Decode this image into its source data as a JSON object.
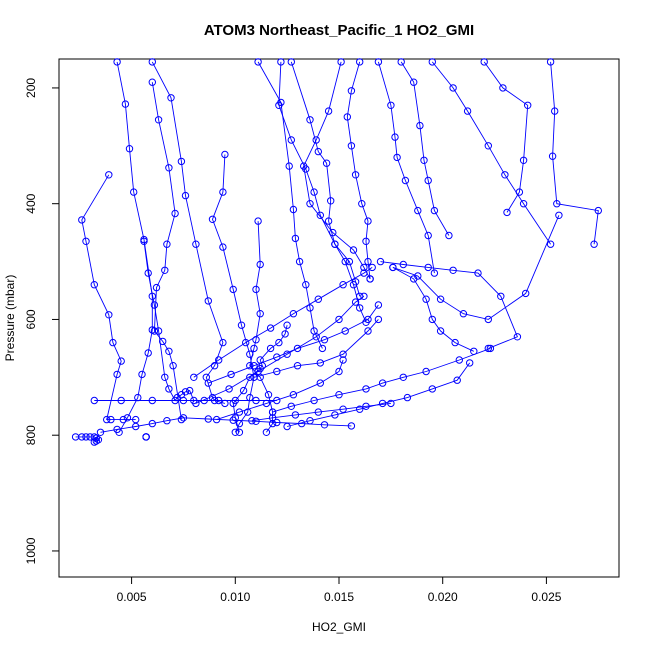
{
  "chart_data": {
    "type": "line",
    "title": "ATOM3 Northeast_Pacific_1 HO2_GMI",
    "xlabel": "HO2_GMI",
    "ylabel": "Pressure (mbar)",
    "xlim": [
      0.0015,
      0.0285
    ],
    "ylim": [
      1045,
      150
    ],
    "y_reversed": true,
    "x_ticks": [
      0.005,
      0.01,
      0.015,
      0.02,
      0.025
    ],
    "x_tick_labels": [
      "0.005",
      "0.010",
      "0.015",
      "0.020",
      "0.025"
    ],
    "y_ticks": [
      200,
      400,
      600,
      800,
      1000
    ],
    "y_tick_labels": [
      "200",
      "400",
      "600",
      "800",
      "1000"
    ],
    "grid": false,
    "legend": "none",
    "marker": "open-circle",
    "color": "#0000ff",
    "series": [
      {
        "x": [
          0.0039,
          0.0026,
          0.0028,
          0.0032,
          0.0039,
          0.0041,
          0.0045,
          0.0043,
          0.0038,
          0.004,
          0.0046,
          0.0052
        ],
        "y": [
          350,
          428,
          465,
          540,
          592,
          640,
          672,
          695,
          773,
          773,
          773,
          773
        ]
      },
      {
        "x": [
          0.0043,
          0.0047,
          0.0049,
          0.0051,
          0.0056,
          0.006,
          0.006,
          0.0058,
          0.0055,
          0.0053,
          0.0048,
          0.0044
        ],
        "y": [
          155,
          228,
          305,
          380,
          462,
          560,
          618,
          658,
          695,
          735,
          770,
          795
        ]
      },
      {
        "x": [
          0.006,
          0.0063,
          0.0068,
          0.0071,
          0.0067,
          0.0066,
          0.0062,
          0.0061,
          0.0065,
          0.0068,
          0.007,
          0.0074
        ],
        "y": [
          190,
          255,
          338,
          417,
          470,
          515,
          545,
          620,
          638,
          655,
          680,
          773
        ]
      },
      {
        "x": [
          0.0056,
          0.0058,
          0.0061,
          0.0063,
          0.0066,
          0.0068,
          0.0071,
          0.0072,
          0.0074,
          0.0076,
          0.0078,
          0.008
        ],
        "y": [
          465,
          520,
          575,
          620,
          700,
          720,
          740,
          735,
          730,
          725,
          723,
          740
        ]
      },
      {
        "x": [
          0.006,
          0.0069,
          0.0074,
          0.0076,
          0.0081,
          0.0087,
          0.0094,
          0.009,
          0.0086,
          0.0089,
          0.009,
          0.0095
        ],
        "y": [
          155,
          217,
          327,
          386,
          470,
          568,
          640,
          680,
          700,
          735,
          740,
          745
        ]
      },
      {
        "x": [
          0.0095,
          0.0094,
          0.0089,
          0.0094,
          0.0099,
          0.0103,
          0.0107,
          0.0109,
          0.0107,
          0.0106,
          0.0102,
          0.01
        ],
        "y": [
          315,
          380,
          427,
          475,
          548,
          610,
          660,
          700,
          735,
          760,
          780,
          795
        ]
      },
      {
        "x": [
          0.0111,
          0.0112,
          0.011,
          0.0112,
          0.011,
          0.0109,
          0.0107,
          0.0112,
          0.0116,
          0.0118,
          0.0118,
          0.0115
        ],
        "y": [
          430,
          505,
          548,
          590,
          635,
          650,
          680,
          700,
          730,
          760,
          780,
          795
        ]
      },
      {
        "x": [
          0.0102,
          0.01,
          0.0099,
          0.0104,
          0.0107,
          0.0112,
          0.0113,
          0.0112,
          0.0117,
          0.0121,
          0.0124,
          0.0125
        ],
        "y": [
          795,
          770,
          745,
          723,
          700,
          685,
          680,
          670,
          650,
          640,
          625,
          610
        ]
      },
      {
        "x": [
          0.0111,
          0.0122,
          0.0126,
          0.0128,
          0.0129,
          0.0131,
          0.0134,
          0.0136,
          0.0138,
          0.0142
        ],
        "y": [
          155,
          225,
          335,
          410,
          460,
          500,
          540,
          580,
          620,
          650
        ]
      },
      {
        "x": [
          0.0122,
          0.0121,
          0.0127,
          0.0134,
          0.0138,
          0.0141,
          0.0148,
          0.0153,
          0.0157,
          0.016,
          0.0163
        ],
        "y": [
          155,
          230,
          290,
          340,
          380,
          420,
          470,
          500,
          540,
          580,
          605
        ]
      },
      {
        "x": [
          0.0127,
          0.0136,
          0.014,
          0.0144,
          0.0146,
          0.0145,
          0.0148,
          0.0155,
          0.0158,
          0.016
        ],
        "y": [
          155,
          255,
          310,
          330,
          395,
          430,
          470,
          500,
          535,
          560
        ]
      },
      {
        "x": [
          0.0151,
          0.0145,
          0.0139,
          0.0133,
          0.0136,
          0.0147,
          0.0157,
          0.0162,
          0.0165
        ],
        "y": [
          155,
          240,
          290,
          335,
          400,
          450,
          480,
          510,
          530
        ]
      },
      {
        "x": [
          0.016,
          0.0156,
          0.0154,
          0.0156,
          0.0158,
          0.0161,
          0.0164,
          0.0163,
          0.0164,
          0.0165
        ],
        "y": [
          155,
          205,
          250,
          300,
          350,
          400,
          430,
          465,
          500,
          530
        ]
      },
      {
        "x": [
          0.0169,
          0.0175,
          0.0177,
          0.0178,
          0.0182,
          0.0188,
          0.0193,
          0.0196
        ],
        "y": [
          155,
          230,
          285,
          320,
          360,
          412,
          455,
          520
        ]
      },
      {
        "x": [
          0.018,
          0.0186,
          0.0189,
          0.0191,
          0.0193,
          0.0196,
          0.0203
        ],
        "y": [
          155,
          190,
          265,
          325,
          360,
          412,
          455
        ]
      },
      {
        "x": [
          0.0195,
          0.0205,
          0.0212,
          0.0222,
          0.023,
          0.0239,
          0.0252
        ],
        "y": [
          155,
          200,
          240,
          300,
          350,
          400,
          470
        ]
      },
      {
        "x": [
          0.022,
          0.0229,
          0.0241,
          0.0239,
          0.0237,
          0.0231
        ],
        "y": [
          155,
          200,
          230,
          325,
          380,
          415
        ]
      },
      {
        "x": [
          0.0252,
          0.0254,
          0.0253,
          0.0255,
          0.0275,
          0.0273
        ],
        "y": [
          155,
          240,
          318,
          400,
          412,
          470
        ]
      },
      {
        "x": [
          0.0176,
          0.0188,
          0.0199,
          0.021,
          0.0222,
          0.024,
          0.0256
        ],
        "y": [
          510,
          525,
          565,
          590,
          600,
          555,
          420
        ]
      },
      {
        "x": [
          0.017,
          0.0181,
          0.0193,
          0.0205,
          0.0217,
          0.0228,
          0.0236,
          0.0222
        ],
        "y": [
          500,
          505,
          510,
          515,
          520,
          560,
          630,
          650
        ]
      },
      {
        "x": [
          0.0176,
          0.0186,
          0.0192,
          0.0195,
          0.0199,
          0.0206,
          0.0215
        ],
        "y": [
          510,
          530,
          565,
          600,
          620,
          640,
          655
        ]
      },
      {
        "x": [
          0.0118,
          0.0127,
          0.0138,
          0.015,
          0.0163,
          0.0171,
          0.0181,
          0.0192,
          0.0208,
          0.0223
        ],
        "y": [
          760,
          750,
          740,
          730,
          720,
          710,
          700,
          690,
          670,
          650
        ]
      },
      {
        "x": [
          0.0125,
          0.0136,
          0.0148,
          0.016,
          0.0171,
          0.0183,
          0.0195,
          0.0207,
          0.0213
        ],
        "y": [
          785,
          775,
          765,
          755,
          745,
          735,
          720,
          705,
          675
        ]
      },
      {
        "x": [
          0.0108,
          0.0118,
          0.0129,
          0.014,
          0.0152,
          0.0163,
          0.0175
        ],
        "y": [
          775,
          770,
          765,
          760,
          755,
          750,
          745
        ]
      },
      {
        "x": [
          0.0109,
          0.012,
          0.013,
          0.0141,
          0.0152,
          0.0164,
          0.0169
        ],
        "y": [
          700,
          690,
          680,
          675,
          660,
          620,
          600
        ]
      },
      {
        "x": [
          0.0087,
          0.0098,
          0.0109,
          0.012,
          0.013,
          0.0143,
          0.0153,
          0.0164,
          0.0169
        ],
        "y": [
          710,
          695,
          680,
          665,
          650,
          635,
          620,
          600,
          575
        ]
      },
      {
        "x": [
          0.008,
          0.0092,
          0.0105,
          0.0117,
          0.0128,
          0.014,
          0.0152,
          0.0162,
          0.0166
        ],
        "y": [
          700,
          670,
          640,
          615,
          590,
          565,
          540,
          520,
          510
        ]
      },
      {
        "x": [
          0.0081,
          0.0097,
          0.0111,
          0.0125,
          0.0139,
          0.015,
          0.0158,
          0.0162
        ],
        "y": [
          745,
          720,
          690,
          660,
          630,
          600,
          570,
          560
        ]
      },
      {
        "x": [
          0.0091,
          0.0102,
          0.0115,
          0.0128,
          0.0141,
          0.015,
          0.0152
        ],
        "y": [
          773,
          760,
          745,
          730,
          710,
          690,
          670
        ]
      },
      {
        "x": [
          0.0032,
          0.0045,
          0.006,
          0.0075,
          0.0085,
          0.0092,
          0.01,
          0.011,
          0.012
        ],
        "y": [
          740,
          740,
          740,
          740,
          740,
          740,
          740,
          740,
          740
        ]
      },
      {
        "x": [
          0.0023,
          0.0026,
          0.0028,
          0.003,
          0.0032,
          0.0033,
          0.0034,
          0.0033,
          0.0032
        ],
        "y": [
          803,
          803,
          803,
          803,
          803,
          805,
          808,
          810,
          812
        ]
      },
      {
        "x": [
          0.0035,
          0.0043,
          0.0052,
          0.006,
          0.0067,
          0.0075,
          0.0087,
          0.0099,
          0.011,
          0.012,
          0.0132,
          0.0143,
          0.0156
        ],
        "y": [
          795,
          790,
          785,
          780,
          775,
          770,
          772,
          774,
          776,
          778,
          780,
          782,
          784
        ]
      },
      {
        "x": [
          0.0057,
          0.0057,
          0.0057,
          0.0057
        ],
        "y": [
          803,
          803,
          803,
          803
        ]
      }
    ]
  }
}
